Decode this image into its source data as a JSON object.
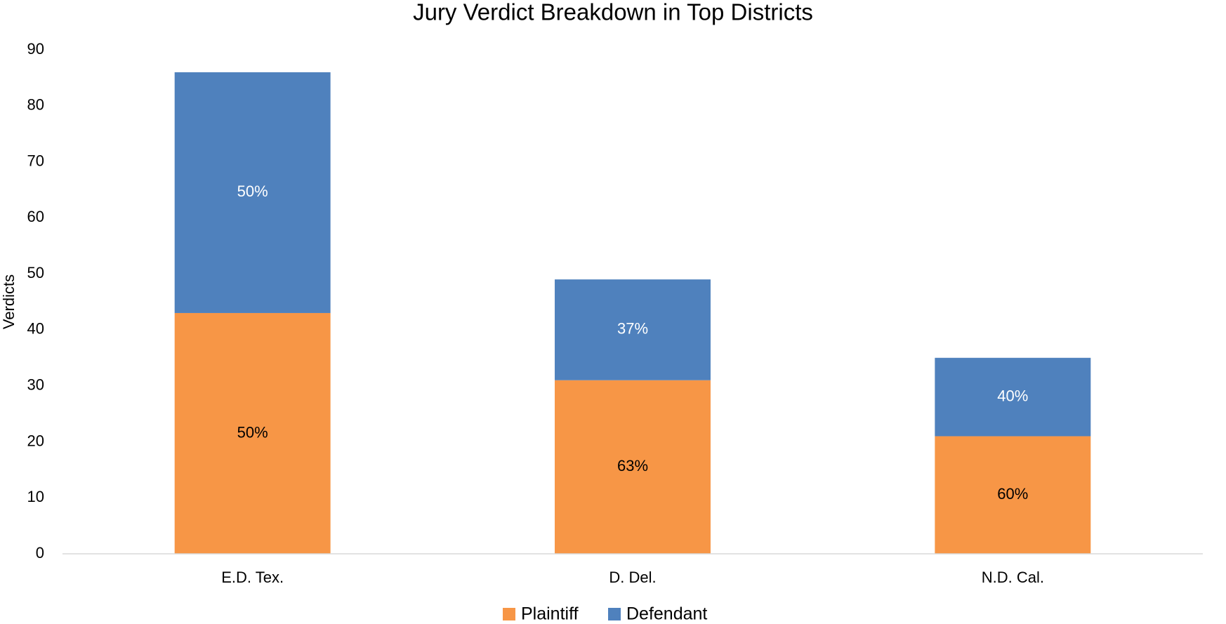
{
  "chart_data": {
    "type": "stacked_bar",
    "title": "Jury Verdict Breakdown in Top Districts",
    "y_label": "Verdicts",
    "categories": [
      "E.D. Tex.",
      "D. Del.",
      "N.D. Cal."
    ],
    "series": [
      {
        "name": "Plaintiff",
        "color": "#f79646",
        "values": [
          43,
          31,
          21
        ],
        "percent_labels": [
          "50%",
          "63%",
          "60%"
        ],
        "label_color": "#000000"
      },
      {
        "name": "Defendant",
        "color": "#4f81bd",
        "values": [
          43,
          18,
          14
        ],
        "percent_labels": [
          "50%",
          "37%",
          "40%"
        ],
        "label_color": "#ffffff"
      }
    ],
    "ylim": [
      0,
      90
    ],
    "yticks": [
      0,
      10,
      20,
      30,
      40,
      50,
      60,
      70,
      80,
      90
    ],
    "grid": false,
    "legend": "bottom"
  }
}
